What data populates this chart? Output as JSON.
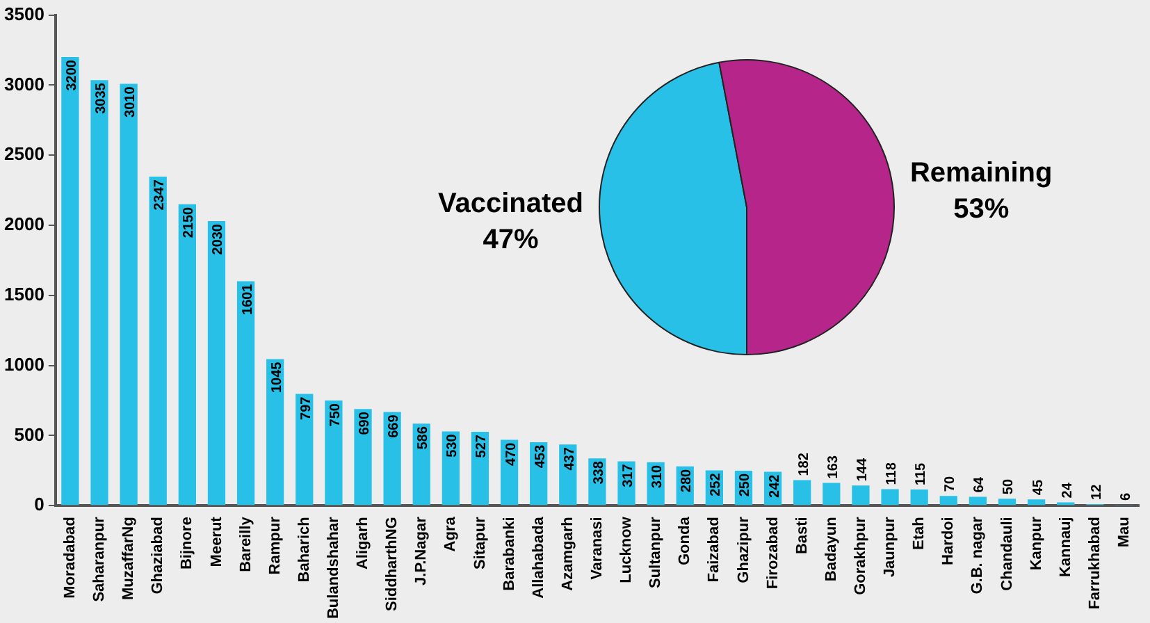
{
  "chart_data": [
    {
      "type": "bar",
      "categories": [
        "Moradabad",
        "Saharanpur",
        "MuzaffarNg",
        "Ghaziabad",
        "Bijnore",
        "Meerut",
        "Bareilly",
        "Rampur",
        "Baharich",
        "Bulandshahar",
        "Aligarh",
        "SiddharthNG",
        "J.P.Nagar",
        "Agra",
        "Sitapur",
        "Barabanki",
        "Allahabada",
        "Azamgarh",
        "Varanasi",
        "Lucknow",
        "Sultanpur",
        "Gonda",
        "Faizabad",
        "Ghazipur",
        "Firozabad",
        "Basti",
        "Badayun",
        "Gorakhpur",
        "Jaunpur",
        "Etah",
        "Hardoi",
        "G.B. nagar",
        "Chandauli",
        "Kanpur",
        "Kannauj",
        "Farrukhabad",
        "Mau"
      ],
      "values": [
        3200,
        3035,
        3010,
        2347,
        2150,
        2030,
        1601,
        1045,
        797,
        750,
        690,
        669,
        586,
        530,
        527,
        470,
        453,
        437,
        338,
        317,
        310,
        280,
        252,
        250,
        242,
        182,
        163,
        144,
        118,
        115,
        70,
        64,
        50,
        45,
        24,
        12,
        6
      ],
      "color": "#29c0e7",
      "ylim": [
        0,
        3500
      ],
      "yticks": [
        0,
        500,
        1000,
        1500,
        2000,
        2500,
        3000,
        3500
      ],
      "data_labels": true
    },
    {
      "type": "pie",
      "categories": [
        "Vaccinated",
        "Remaining"
      ],
      "values": [
        47,
        53
      ],
      "colors": [
        "#29c0e7",
        "#b5258a"
      ],
      "value_labels": [
        "47%",
        "53%"
      ]
    }
  ]
}
